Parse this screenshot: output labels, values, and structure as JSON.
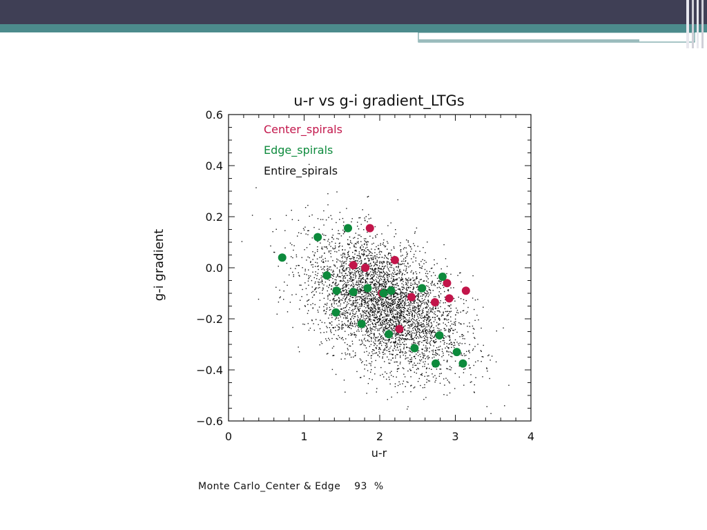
{
  "slide": {
    "header_color": "#3f3f55",
    "accent_color": "#4c8b8c"
  },
  "footnote": "Monte Carlo_Center & Edge    93  %",
  "chart_data": {
    "type": "scatter",
    "title": "u-r vs g-i gradient_LTGs",
    "xlabel": "u-r",
    "ylabel": "g-i gradient",
    "xlim": [
      0,
      4
    ],
    "ylim": [
      -0.6,
      0.6
    ],
    "xticks": [
      "0",
      "1",
      "2",
      "3",
      "4"
    ],
    "yticks": [
      "0.6",
      "0.4",
      "0.2",
      "0.0",
      "−0.2",
      "−0.4",
      "−0.6"
    ],
    "grid": false,
    "legend_position": "top-left",
    "series": [
      {
        "name": "Center_spirals",
        "color": "#c2154a",
        "x": [
          1.87,
          1.65,
          1.81,
          2.2,
          2.89,
          3.14,
          2.03,
          2.42,
          2.73,
          2.92,
          2.26
        ],
        "y": [
          0.155,
          0.01,
          0.0,
          0.03,
          -0.06,
          -0.09,
          -0.1,
          -0.115,
          -0.135,
          -0.12,
          -0.24
        ]
      },
      {
        "name": "Edge_spirals",
        "color": "#0d8a3c",
        "x": [
          0.71,
          1.18,
          1.58,
          1.3,
          1.43,
          1.65,
          1.84,
          2.05,
          2.15,
          2.56,
          2.83,
          1.42,
          1.76,
          2.12,
          2.46,
          2.79,
          2.74,
          3.02,
          3.1
        ],
        "y": [
          0.04,
          0.12,
          0.155,
          -0.03,
          -0.09,
          -0.095,
          -0.08,
          -0.1,
          -0.09,
          -0.08,
          -0.035,
          -0.175,
          -0.22,
          -0.26,
          -0.315,
          -0.265,
          -0.375,
          -0.33,
          -0.375
        ]
      },
      {
        "name": "Entire_spirals",
        "color": "#111111",
        "marker": "dot",
        "distribution": {
          "x_mean": 2.05,
          "x_sd": 0.5,
          "y_mean": -0.14,
          "y_sd": 0.12,
          "slope": -0.12
        }
      }
    ]
  }
}
